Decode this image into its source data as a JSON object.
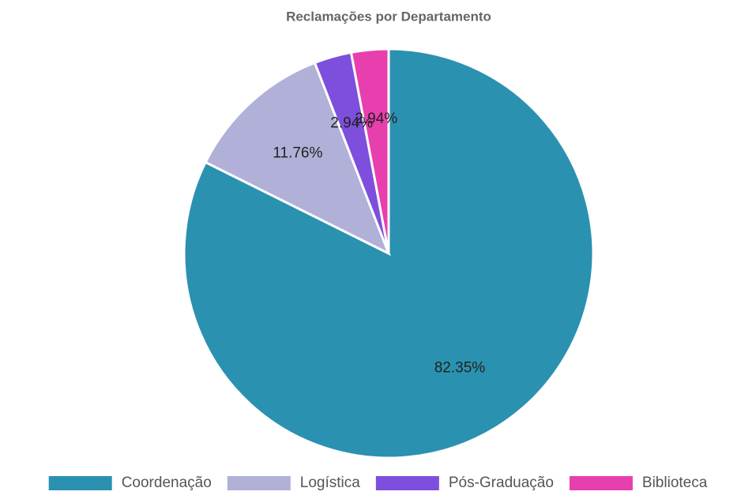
{
  "chart_data": {
    "type": "pie",
    "title": "Reclamações por Departamento",
    "categories": [
      "Coordenação",
      "Logística",
      "Pós-Graduação",
      "Biblioteca"
    ],
    "values": [
      82.35,
      11.76,
      2.94,
      2.94
    ],
    "value_labels": [
      "82.35%",
      "11.76%",
      "2.94%",
      "2.94%"
    ],
    "colors": [
      "#2b91b0",
      "#b0b0d8",
      "#7e4fdc",
      "#e83faf"
    ],
    "legend": "bottom"
  }
}
